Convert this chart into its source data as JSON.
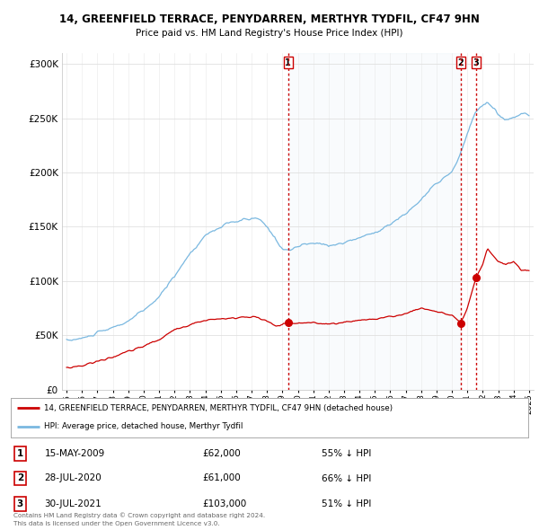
{
  "title1": "14, GREENFIELD TERRACE, PENYDARREN, MERTHYR TYDFIL, CF47 9HN",
  "title2": "Price paid vs. HM Land Registry's House Price Index (HPI)",
  "legend_property": "14, GREENFIELD TERRACE, PENYDARREN, MERTHYR TYDFIL, CF47 9HN (detached house)",
  "legend_hpi": "HPI: Average price, detached house, Merthyr Tydfil",
  "footer1": "Contains HM Land Registry data © Crown copyright and database right 2024.",
  "footer2": "This data is licensed under the Open Government Licence v3.0.",
  "transactions": [
    {
      "num": 1,
      "date": "15-MAY-2009",
      "price": 62000,
      "pct": "55%",
      "dir": "↓",
      "x_year": 2009.37
    },
    {
      "num": 2,
      "date": "28-JUL-2020",
      "price": 61000,
      "pct": "66%",
      "dir": "↓",
      "x_year": 2020.57
    },
    {
      "num": 3,
      "date": "30-JUL-2021",
      "price": 103000,
      "pct": "51%",
      "dir": "↓",
      "x_year": 2021.57
    }
  ],
  "transaction_prices": [
    62000,
    61000,
    103000
  ],
  "hpi_color": "#7ab8e0",
  "hpi_fill_color": "#d8eaf6",
  "property_color": "#cc0000",
  "vline_color": "#cc0000",
  "background_color": "#ffffff",
  "ylim": [
    0,
    310000
  ],
  "xlim_start": 1994.7,
  "xlim_end": 2025.3,
  "yticks": [
    0,
    50000,
    100000,
    150000,
    200000,
    250000,
    300000
  ],
  "xticks": [
    1995,
    1996,
    1997,
    1998,
    1999,
    2000,
    2001,
    2002,
    2003,
    2004,
    2005,
    2006,
    2007,
    2008,
    2009,
    2010,
    2011,
    2012,
    2013,
    2014,
    2015,
    2016,
    2017,
    2018,
    2019,
    2020,
    2021,
    2022,
    2023,
    2024,
    2025
  ]
}
